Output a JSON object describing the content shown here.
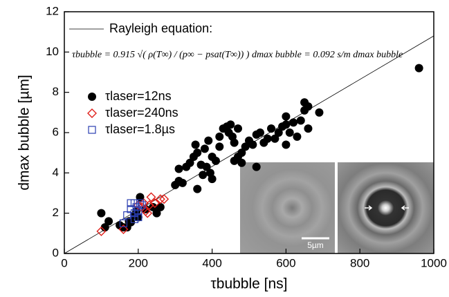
{
  "chart_data": {
    "type": "scatter",
    "x_label": "τbubble [ns]",
    "y_label": "dmax bubble [µm]",
    "xlim": [
      0,
      1000
    ],
    "xticks": [
      0,
      200,
      400,
      600,
      800,
      1000
    ],
    "ylim": [
      0,
      12
    ],
    "yticks": [
      0,
      2,
      4,
      6,
      8,
      10,
      12
    ],
    "equation": "τbubble = 0.915 √( ρ(T∞) / (p∞ − psat(T∞)) ) dmax bubble = 0.092 s/m dmax bubble",
    "scale_bar_label": "5µm",
    "series": [
      {
        "name": "Rayleigh equation:",
        "mode": "line",
        "color": "#000000",
        "x": [
          0,
          1000
        ],
        "values": [
          0,
          10.8
        ]
      },
      {
        "name": "τlaser=12ns",
        "mode": "marker",
        "marker": "circle",
        "color": "#000000",
        "x": [
          100,
          110,
          120,
          150,
          160,
          175,
          180,
          190,
          200,
          205,
          220,
          240,
          250,
          260,
          300,
          310,
          320,
          310,
          330,
          340,
          350,
          360,
          355,
          360,
          370,
          375,
          380,
          385,
          390,
          395,
          400,
          400,
          410,
          420,
          420,
          430,
          440,
          445,
          450,
          455,
          460,
          460,
          470,
          480,
          470,
          480,
          490,
          500,
          510,
          520,
          520,
          530,
          540,
          550,
          560,
          570,
          580,
          590,
          600,
          600,
          600,
          610,
          620,
          630,
          640,
          650,
          650,
          660,
          660,
          690,
          960,
          170,
          195
        ],
        "values": [
          2.0,
          1.3,
          1.6,
          1.4,
          1.3,
          1.6,
          1.55,
          1.9,
          1.8,
          2.8,
          2.2,
          2.3,
          2.0,
          2.3,
          3.4,
          3.6,
          3.5,
          4.2,
          4.3,
          4.5,
          4.8,
          3.2,
          5.4,
          5.0,
          4.4,
          3.9,
          5.2,
          4.3,
          5.6,
          4.0,
          3.7,
          4.8,
          4.6,
          5.3,
          5.8,
          6.2,
          6.3,
          6.0,
          6.4,
          5.8,
          5.5,
          4.6,
          4.8,
          4.5,
          6.2,
          5.0,
          5.3,
          5.6,
          5.4,
          4.3,
          5.9,
          6.0,
          5.5,
          5.7,
          6.2,
          5.7,
          6.0,
          6.3,
          5.4,
          6.4,
          6.8,
          6.0,
          6.5,
          5.8,
          6.6,
          7.1,
          7.5,
          7.3,
          6.2,
          7.0,
          9.2,
          1.3,
          2.1
        ]
      },
      {
        "name": "τlaser=240ns",
        "mode": "marker",
        "marker": "diamond",
        "color": "#e0201b",
        "x": [
          100,
          160,
          200,
          210,
          220,
          225,
          230,
          235,
          245,
          260,
          270,
          215
        ],
        "values": [
          1.1,
          1.2,
          2.4,
          2.3,
          2.1,
          2.0,
          2.4,
          2.8,
          2.5,
          2.7,
          2.7,
          2.5
        ]
      },
      {
        "name": "τlaser=1.8µs",
        "mode": "marker",
        "marker": "square",
        "color": "#2a3eb1",
        "x": [
          160,
          170,
          180,
          180,
          190,
          190,
          195,
          200,
          205,
          200,
          210,
          190
        ],
        "values": [
          1.5,
          1.9,
          2.2,
          2.5,
          2.5,
          2.0,
          2.3,
          1.8,
          2.5,
          2.1,
          2.4,
          1.7
        ]
      }
    ]
  }
}
